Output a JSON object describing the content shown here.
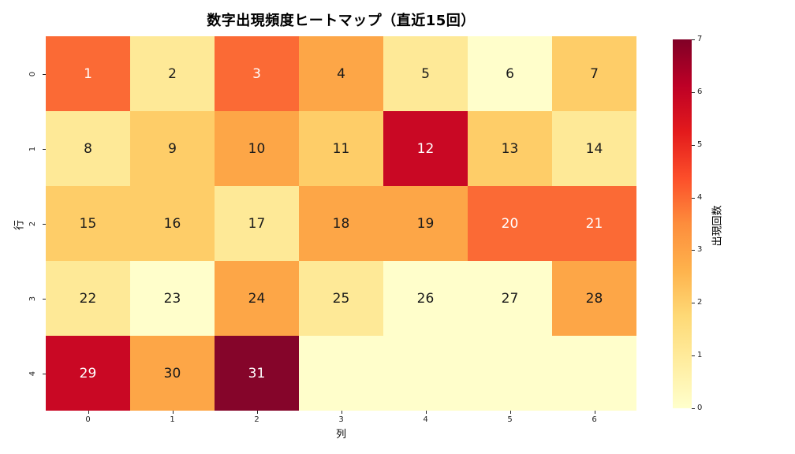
{
  "chart_data": {
    "type": "heatmap",
    "title": "数字出現頻度ヒートマップ（直近15回）",
    "xlabel": "列",
    "ylabel": "行",
    "colorbar_label": "出現回数",
    "x_ticks": [
      "0",
      "1",
      "2",
      "3",
      "4",
      "5",
      "6"
    ],
    "y_ticks": [
      "0",
      "1",
      "2",
      "3",
      "4"
    ],
    "colorbar_ticks": [
      "0",
      "1",
      "2",
      "3",
      "4",
      "5",
      "6",
      "7"
    ],
    "vmin": 0,
    "vmax": 7,
    "colormap": "YlOrRd",
    "legend_position": "right-colorbar",
    "grid": false,
    "cell_labels": [
      [
        "1",
        "2",
        "3",
        "4",
        "5",
        "6",
        "7"
      ],
      [
        "8",
        "9",
        "10",
        "11",
        "12",
        "13",
        "14"
      ],
      [
        "15",
        "16",
        "17",
        "18",
        "19",
        "20",
        "21"
      ],
      [
        "22",
        "23",
        "24",
        "25",
        "26",
        "27",
        "28"
      ],
      [
        "29",
        "30",
        "31",
        "",
        "",
        "",
        ""
      ]
    ],
    "values": [
      [
        4,
        1,
        4,
        3,
        1,
        0,
        2
      ],
      [
        1,
        2,
        3,
        2,
        6,
        2,
        1
      ],
      [
        2,
        2,
        1,
        3,
        3,
        4,
        4
      ],
      [
        1,
        0,
        3,
        1,
        0,
        0,
        3
      ],
      [
        6,
        3,
        7,
        0,
        0,
        0,
        0
      ]
    ],
    "value_colors": {
      "0": "#fffecb",
      "1": "#fee997",
      "2": "#fecd68",
      "3": "#fda647",
      "4": "#fb6a35",
      "5": "#ec3023",
      "6": "#c90824",
      "7": "#85052a"
    },
    "colorbar_gradient": [
      "#ffffcc",
      "#ffeda0",
      "#fed976",
      "#feb24c",
      "#fd8d3c",
      "#fc4e2a",
      "#e31a1c",
      "#bd0026",
      "#800026"
    ],
    "annotation_colors": {
      "dark": "#1a1a1a",
      "light": "#ffffff"
    },
    "white_text_min": 4
  }
}
